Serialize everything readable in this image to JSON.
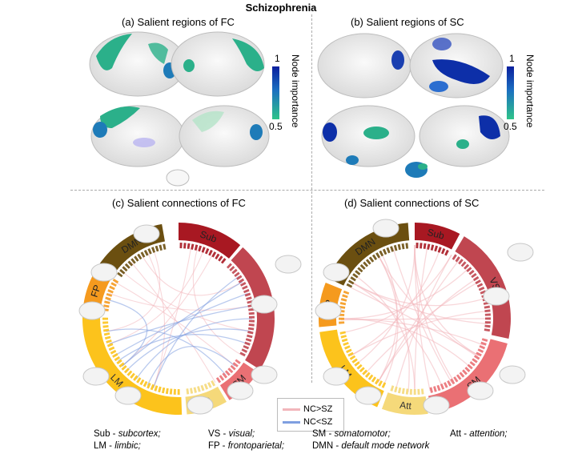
{
  "figure": {
    "title": "Schizophrenia",
    "panels": {
      "a": "(a) Salient regions of FC",
      "b": "(b) Salient regions of SC",
      "c": "(c) Salient connections of FC",
      "d": "(d) Salient connections of SC"
    },
    "colorbar": {
      "label": "Node importance",
      "max": "1",
      "min": "0.5"
    },
    "legend": {
      "nc_gt": "NC>SZ",
      "nc_lt": "NC<SZ"
    },
    "networks_c": [
      "Sub",
      "VS",
      "SM",
      "Att",
      "LM",
      "FP",
      "DMN"
    ],
    "networks_d": [
      "Sub",
      "VS",
      "SM",
      "Att",
      "LM",
      "FP",
      "DMN"
    ],
    "abbreviations": [
      {
        "abbr": "Sub -",
        "full": "subcortex;"
      },
      {
        "abbr": "VS -",
        "full": "visual;"
      },
      {
        "abbr": "SM -",
        "full": "somatomotor;"
      },
      {
        "abbr": "Att -",
        "full": "attention;"
      },
      {
        "abbr": "LM -",
        "full": "limbic;"
      },
      {
        "abbr": "FP -",
        "full": "frontoparietal;"
      },
      {
        "abbr": "DMN -",
        "full": "default mode network"
      }
    ],
    "colors": {
      "sub": "#a81822",
      "vs": "#c04650",
      "sm": "#ea7074",
      "att": "#f5d97a",
      "lm": "#fcc31c",
      "fp": "#f59a1e",
      "dmn": "#6b4f10",
      "nc_gt": "#f2b6bb",
      "nc_lt": "#7f9fe0",
      "cbar_top": "#0a1f9e",
      "cbar_bottom": "#2fc48a"
    }
  }
}
